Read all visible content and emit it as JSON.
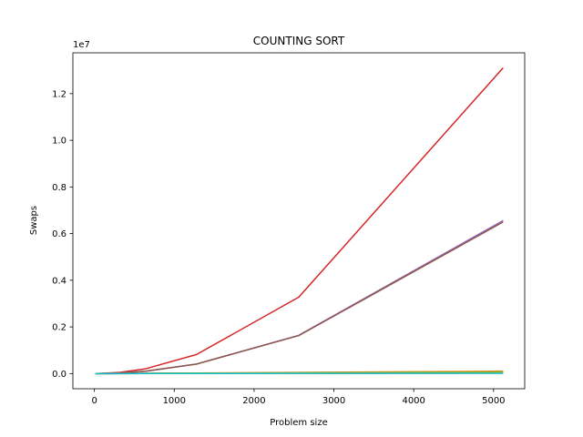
{
  "chart_data": {
    "type": "line",
    "title": "COUNTING SORT",
    "xlabel": "Problem size",
    "ylabel": "Swaps",
    "y_offset_text": "1e7",
    "xlim": [
      -270,
      5390
    ],
    "ylim": [
      -650000,
      13750000
    ],
    "xticks": [
      0,
      1000,
      2000,
      3000,
      4000,
      5000
    ],
    "yticks": [
      0,
      2000000,
      4000000,
      6000000,
      8000000,
      10000000,
      12000000
    ],
    "xtick_labels": [
      "0",
      "1000",
      "2000",
      "3000",
      "4000",
      "5000"
    ],
    "ytick_labels": [
      "0.0",
      "0.2",
      "0.4",
      "0.6",
      "0.8",
      "1.0",
      "1.2"
    ],
    "grid": false,
    "legend": "none",
    "x": [
      10,
      320,
      640,
      1280,
      2560,
      5120
    ],
    "series": [
      {
        "color": "#1f77b4",
        "values": [
          10,
          2000,
          4500,
          9000,
          18500,
          40000
        ]
      },
      {
        "color": "#ff7f0e",
        "values": [
          10,
          6000,
          12000,
          24000,
          48000,
          100000
        ]
      },
      {
        "color": "#2ca02c",
        "values": [
          10,
          4000,
          8000,
          16000,
          33000,
          70000
        ]
      },
      {
        "color": "#d62728",
        "values": [
          100,
          51000,
          205000,
          819000,
          3277000,
          13107000
        ]
      },
      {
        "color": "#9467bd",
        "values": [
          80,
          25000,
          103000,
          410000,
          1640000,
          6560000
        ]
      },
      {
        "color": "#8c564b",
        "values": [
          80,
          25000,
          102000,
          408000,
          1630000,
          6500000
        ]
      },
      {
        "color": "#e377c2",
        "values": [
          10,
          1500,
          3000,
          6000,
          12000,
          25000
        ]
      },
      {
        "color": "#7f7f7f",
        "values": [
          10,
          1000,
          2000,
          4000,
          8000,
          16000
        ]
      },
      {
        "color": "#bcbd22",
        "values": [
          10,
          3000,
          6000,
          12000,
          25000,
          52000
        ]
      },
      {
        "color": "#17becf",
        "values": [
          10,
          800,
          1600,
          3200,
          6400,
          13000
        ]
      }
    ]
  }
}
